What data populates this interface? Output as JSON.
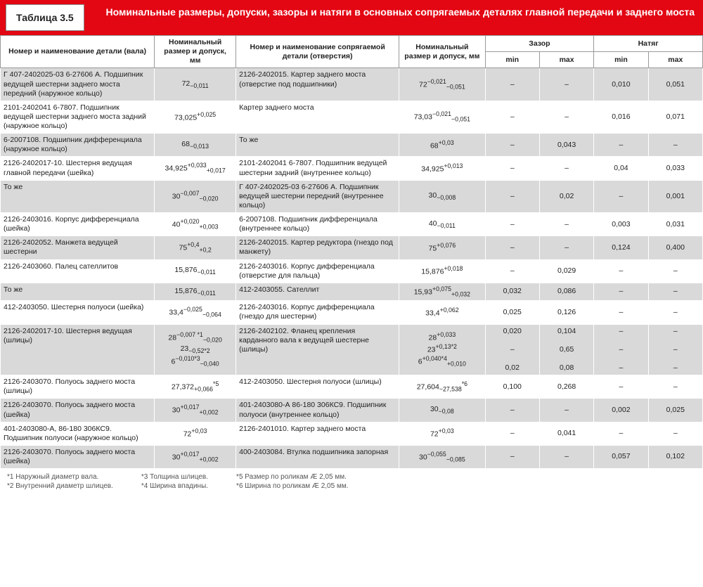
{
  "header": {
    "tab": "Таблица 3.5",
    "title": "Номинальные размеры, допуски, зазоры и натяги в основных сопрягаемых деталях главной передачи и заднего моста"
  },
  "columns": {
    "c1": "Номер и наименование детали (вала)",
    "c2": "Номинальный размер и допуск, мм",
    "c3": "Номер и наименование сопрягаемой детали (отверстия)",
    "c4": "Номинальный размер и допуск, мм",
    "gap": "Зазор",
    "fit": "Натяг",
    "min": "min",
    "max": "max"
  },
  "rows": [
    {
      "a": "Г 407-2402025-03 6-27606 А. Подшипник ведущей шестерни заднего моста передний (наружное кольцо)",
      "b": "72<sub>−0,011</sub>",
      "c": "2126-2402015. Картер заднего моста (отверстие под подшипники)",
      "d": "72<sup>−0,021</sup><sub>−0,051</sub>",
      "gmin": "–",
      "gmax": "–",
      "fmin": "0,010",
      "fmax": "0,051"
    },
    {
      "a": "2101-2402041 6-7807. Подшипник ведущей шестерни заднего моста задний (наружное кольцо)",
      "b": "73,025<sup>+0,025</sup>",
      "c": "Картер заднего моста",
      "d": "73,03<sup>−0,021</sup><sub>−0,051</sub>",
      "gmin": "–",
      "gmax": "–",
      "fmin": "0,016",
      "fmax": "0,071"
    },
    {
      "a": "6-2007108. Подшипник дифференциала (наружное кольцо)",
      "b": "68<sub>−0,013</sub>",
      "c": "То же",
      "d": "68<sup>+0,03</sup>",
      "gmin": "–",
      "gmax": "0,043",
      "fmin": "–",
      "fmax": "–"
    },
    {
      "a": "2126-2402017-10. Шестерня ведущая главной передачи (шейка)",
      "b": "34,925<sup>+0,033</sup><sub>+0,017</sub>",
      "c": "2101-2402041 6-7807. Подшипник ведущей шестерни задний (внутреннее кольцо)",
      "d": "34,925<sup>+0,013</sup>",
      "gmin": "–",
      "gmax": "–",
      "fmin": "0,04",
      "fmax": "0,033"
    },
    {
      "a": "То же",
      "b": "30<sup>−0,007</sup><sub>−0,020</sub>",
      "c": "Г 407-2402025-03 6-27606 А. Подшипник ведущей шестерни передний (внутреннее кольцо)",
      "d": "30<sub>−0,008</sub>",
      "gmin": "–",
      "gmax": "0,02",
      "fmin": "–",
      "fmax": "0,001"
    },
    {
      "a": "2126-2403016. Корпус дифференциала (шейка)",
      "b": "40<sup>+0,020</sup><sub>+0,003</sub>",
      "c": "6-2007108. Подшипник дифференциала (внутреннее кольцо)",
      "d": "40<sub>−0,011</sub>",
      "gmin": "–",
      "gmax": "–",
      "fmin": "0,003",
      "fmax": "0,031"
    },
    {
      "a": "2126-2402052. Манжета ведущей шестерни",
      "b": "75<sup>+0,4</sup><sub>+0,2</sub>",
      "c": "2126-2402015. Картер редуктора (гнездо под манжету)",
      "d": "75<sup>+0,076</sup>",
      "gmin": "–",
      "gmax": "–",
      "fmin": "0,124",
      "fmax": "0,400"
    },
    {
      "a": "2126-2403060. Палец сателлитов",
      "b": "15,876<sub>−0,011</sub>",
      "c": "2126-2403016. Корпус дифференциала (отверстие для пальца)",
      "d": "15,876<sup>+0,018</sup>",
      "gmin": "–",
      "gmax": "0,029",
      "fmin": "–",
      "fmax": "–"
    },
    {
      "a": "То же",
      "b": "15,876<sub>−0,011</sub>",
      "c": "412-2403055. Сателлит",
      "d": "15,93<sup>+0,075</sup><sub>+0,032</sub>",
      "gmin": "0,032",
      "gmax": "0,086",
      "fmin": "–",
      "fmax": "–"
    },
    {
      "a": "412-2403050. Шестерня полуоси (шейка)",
      "b": "33,4<sup>−0,025</sup><sub>−0,064</sub>",
      "c": "2126-2403016. Корпус дифференциала (гнездо для шестерни)",
      "d": "33,4<sup>+0,062</sup>",
      "gmin": "0,025",
      "gmax": "0,126",
      "fmin": "–",
      "fmax": "–"
    },
    {
      "a": "2126-2402017-10. Шестерня ведущая (шлицы)",
      "b": "28<sup>−0,007 *1</sup><sub>−0,020</sub><br>23<sub>−0,52*2</sub><br>6<sup>−0,010*3</sup><sub>−0,040</sub>",
      "c": "2126-2402102. Фланец крепления карданного вала к ведущей шестерне (шлицы)",
      "d": "28<sup>+0,033</sup><br>23<sup>+0,13*2</sup><br>6<sup>+0,040*4</sup><sub>+0,010</sub>",
      "gmin": "0,020<br><br>–<br><br>0,02",
      "gmax": "0,104<br><br>0,65<br><br>0,08",
      "fmin": "–<br><br>–<br><br>–",
      "fmax": "–<br><br>–<br><br>–"
    },
    {
      "a": "2126-2403070. Полуось заднего моста (шлицы)",
      "b": "27,372<sub>+0,066</sub><sup>*5</sup>",
      "c": "412-2403050. Шестерня полуоси (шлицы)",
      "d": "27,604<sub>−27,538</sub><sup>*6</sup>",
      "gmin": "0,100",
      "gmax": "0,268",
      "fmin": "–",
      "fmax": "–"
    },
    {
      "a": "2126-2403070. Полуось заднего моста (шейка)",
      "b": "30<sup>+0,017</sup><sub>+0,002</sub>",
      "c": "401-2403080-А 86-180 306КС9. Подшипник полуоси (внутреннее кольцо)",
      "d": "30<sub>−0,08</sub>",
      "gmin": "–",
      "gmax": "–",
      "fmin": "0,002",
      "fmax": "0,025"
    },
    {
      "a": "401-2403080-А, 86-180 306КС9. Подшипник полуоси (наружное кольцо)",
      "b": "72<sup>+0,03</sup>",
      "c": "2126-2401010. Картер заднего моста",
      "d": "72<sup>+0,03</sup>",
      "gmin": "–",
      "gmax": "0,041",
      "fmin": "–",
      "fmax": "–"
    },
    {
      "a": "2126-2403070. Полуось заднего моста (шейка)",
      "b": "30<sup>+0,017</sup><sub>+0,002</sub>",
      "c": "400-2403084. Втулка подшипника запорная",
      "d": "30<sup>−0,055</sup><sub>−0,085</sub>",
      "gmin": "–",
      "gmax": "–",
      "fmin": "0,057",
      "fmax": "0,102"
    }
  ],
  "footnotes": [
    [
      "*1 Наружный диаметр вала.",
      "*2 Внутренний диаметр шлицев."
    ],
    [
      "*3 Толщина шлицев.",
      "*4 Ширина впадины."
    ],
    [
      "*5 Размер по роликам Æ 2,05 мм.",
      "*6 Ширина по роликам Æ 2,05 мм."
    ]
  ]
}
